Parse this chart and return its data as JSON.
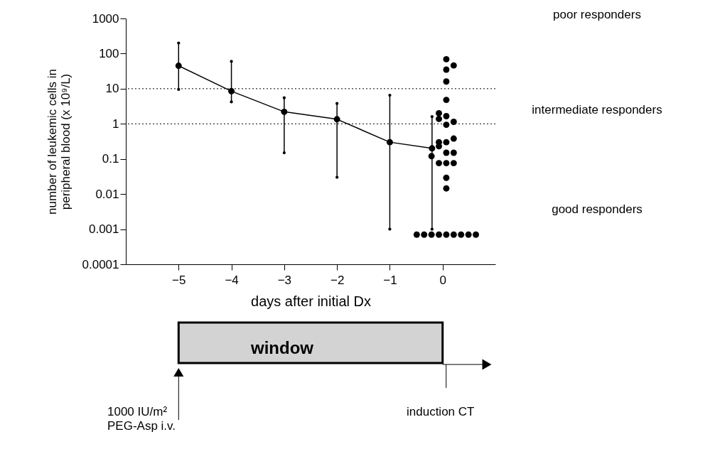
{
  "chart_data": {
    "type": "line",
    "xlabel": "days after initial Dx",
    "ylabel": "number of leukemic cells in peripheral blood (x 10⁹/L)",
    "xlim": [
      -6,
      1
    ],
    "xticks": [
      -5,
      -4,
      -3,
      -2,
      -1,
      0
    ],
    "ylim": [
      0.0001,
      1000
    ],
    "yticks": [
      0.0001,
      0.001,
      0.01,
      0.1,
      1,
      10,
      100,
      1000
    ],
    "log": "y",
    "grid": false,
    "marker": "circle",
    "line_style": "solid",
    "series": [
      {
        "type": "line",
        "color": "#000000",
        "x": [
          -5,
          -4,
          -3,
          -2,
          -1,
          -0.2
        ],
        "values": [
          45,
          8.5,
          2.2,
          1.35,
          0.3,
          0.2
        ],
        "errors": [
          [
            9.5,
            200
          ],
          [
            4.2,
            60
          ],
          [
            0.15,
            5.5
          ],
          [
            0.03,
            3.8
          ],
          [
            0.001,
            6.5
          ],
          [
            0.001,
            1.6
          ]
        ]
      },
      {
        "type": "scatter",
        "color": "#000000",
        "x": [
          -0.21,
          -0.07,
          -0.07,
          -0.07,
          -0.07,
          -0.07,
          0.07,
          0.07,
          0.07,
          0.07,
          0.07,
          0.07,
          0.07,
          0.07,
          0.07,
          0.07,
          0.07,
          0.21,
          0.21,
          0.21,
          0.21,
          0.21,
          -0.49,
          -0.35,
          -0.21,
          -0.07,
          0.07,
          0.21,
          0.35,
          0.49,
          0.63
        ],
        "values": [
          0.12,
          2.0,
          1.38,
          0.3,
          0.23,
          0.076,
          69,
          35,
          16,
          4.8,
          1.65,
          0.94,
          0.3,
          0.15,
          0.076,
          0.029,
          0.0145,
          46,
          1.14,
          0.38,
          0.15,
          0.076,
          0.0007,
          0.0007,
          0.0007,
          0.0007,
          0.0007,
          0.0007,
          0.0007,
          0.0007,
          0.0007
        ]
      }
    ],
    "ref_lines": [
      {
        "axis": "y",
        "value": 10,
        "line_style": "dotted"
      },
      {
        "axis": "y",
        "value": 1,
        "line_style": "dotted"
      }
    ],
    "annotations": [
      "poor responders",
      "intermediate responders",
      "good responders",
      "window",
      "1000 IU/m²",
      "PEG-Asp i.v.",
      "induction CT"
    ]
  }
}
